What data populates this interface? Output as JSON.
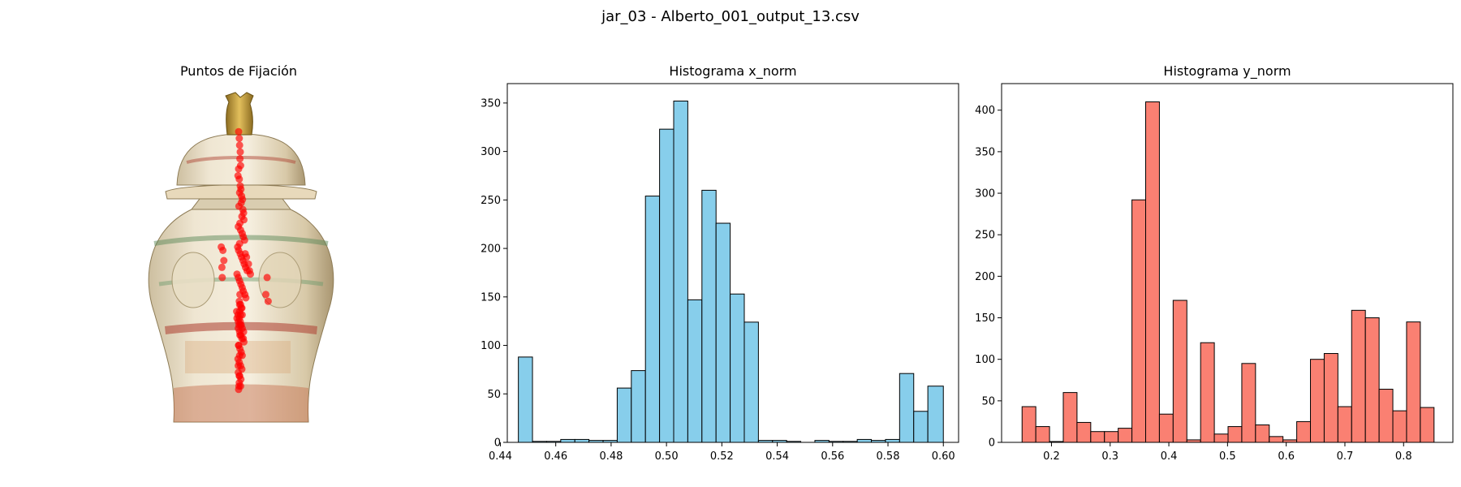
{
  "figure_title": "jar_03 - Alberto_001_output_13.csv",
  "colors": {
    "x_hist_fill": "#87ceeb",
    "y_hist_fill": "#fa8072",
    "bar_edge": "#000000",
    "fixation": "#ff0000"
  },
  "chart_data": [
    {
      "type": "scatter",
      "title": "Puntos de Fijación",
      "note": "Fixation points drawn over a porcelain jar image; no axes shown",
      "x": [
        0.5,
        0.502,
        0.503,
        0.505,
        0.504,
        0.506,
        0.5,
        0.498,
        0.502,
        0.505,
        0.507,
        0.503,
        0.509,
        0.512,
        0.508,
        0.501,
        0.513,
        0.515,
        0.51,
        0.516,
        0.504,
        0.499,
        0.506,
        0.511,
        0.514,
        0.518,
        0.503,
        0.497,
        0.5,
        0.505,
        0.509,
        0.513,
        0.517,
        0.521,
        0.526,
        0.495,
        0.499,
        0.503,
        0.507,
        0.511,
        0.514,
        0.519,
        0.522,
        0.502,
        0.506,
        0.51,
        0.494,
        0.498,
        0.502,
        0.505,
        0.508,
        0.511,
        0.515,
        0.447,
        0.452,
        0.455,
        0.449,
        0.45,
        0.52,
        0.524,
        0.53,
        0.533,
        0.536,
        0.587,
        0.583,
        0.59,
        0.508,
        0.503,
        0.511,
        0.495,
        0.499,
        0.506,
        0.499,
        0.503,
        0.507,
        0.51,
        0.514,
        0.516,
        0.5,
        0.504,
        0.508,
        0.511,
        0.498,
        0.502,
        0.506,
        0.51,
        0.499,
        0.503,
        0.507,
        0.502,
        0.506,
        0.5,
        0.504,
        0.503,
        0.506,
        0.501,
        0.504,
        0.5,
        0.503,
        0.499,
        0.502,
        0.501
      ],
      "y": [
        0.88,
        0.86,
        0.84,
        0.82,
        0.8,
        0.78,
        0.77,
        0.75,
        0.74,
        0.72,
        0.71,
        0.7,
        0.69,
        0.68,
        0.67,
        0.66,
        0.65,
        0.64,
        0.63,
        0.62,
        0.61,
        0.6,
        0.59,
        0.58,
        0.57,
        0.56,
        0.55,
        0.54,
        0.53,
        0.52,
        0.51,
        0.5,
        0.49,
        0.48,
        0.47,
        0.46,
        0.45,
        0.44,
        0.43,
        0.42,
        0.41,
        0.4,
        0.39,
        0.38,
        0.37,
        0.36,
        0.35,
        0.34,
        0.33,
        0.32,
        0.31,
        0.3,
        0.29,
        0.54,
        0.53,
        0.5,
        0.48,
        0.45,
        0.52,
        0.51,
        0.49,
        0.47,
        0.46,
        0.45,
        0.4,
        0.38,
        0.36,
        0.35,
        0.34,
        0.33,
        0.32,
        0.31,
        0.3,
        0.29,
        0.28,
        0.27,
        0.27,
        0.26,
        0.25,
        0.24,
        0.23,
        0.22,
        0.21,
        0.2,
        0.19,
        0.18,
        0.17,
        0.16,
        0.15,
        0.14,
        0.13,
        0.12,
        0.4,
        0.37,
        0.34,
        0.31,
        0.28,
        0.25,
        0.22,
        0.19,
        0.16,
        0.13
      ]
    },
    {
      "type": "bar",
      "title": "Histograma x_norm",
      "xlim": [
        0.4425,
        0.6055
      ],
      "ylim": [
        0,
        370
      ],
      "xticks": [
        0.44,
        0.46,
        0.48,
        0.5,
        0.52,
        0.54,
        0.56,
        0.58,
        0.6
      ],
      "xtick_labels": [
        "0.44",
        "0.46",
        "0.48",
        "0.50",
        "0.52",
        "0.54",
        "0.56",
        "0.58",
        "0.60"
      ],
      "yticks": [
        0,
        50,
        100,
        150,
        200,
        250,
        300,
        350
      ],
      "bin_edges": [
        0.4465,
        0.4516,
        0.4567,
        0.4618,
        0.4669,
        0.472,
        0.4771,
        0.4822,
        0.4873,
        0.4924,
        0.4975,
        0.5026,
        0.5077,
        0.5128,
        0.5179,
        0.523,
        0.5281,
        0.5332,
        0.5383,
        0.5434,
        0.5485,
        0.5536,
        0.5587,
        0.5638,
        0.5689,
        0.574,
        0.5791,
        0.5842,
        0.5893,
        0.5944,
        0.6
      ],
      "values": [
        88,
        1,
        1,
        3,
        3,
        2,
        2,
        56,
        74,
        254,
        323,
        352,
        147,
        260,
        226,
        153,
        124,
        2,
        2,
        1,
        0,
        2,
        1,
        1,
        3,
        2,
        3,
        71,
        32,
        58
      ]
    },
    {
      "type": "bar",
      "title": "Histograma y_norm",
      "xlim": [
        0.115,
        0.884
      ],
      "ylim": [
        0,
        432
      ],
      "xticks": [
        0.2,
        0.3,
        0.4,
        0.5,
        0.6,
        0.7,
        0.8
      ],
      "xtick_labels": [
        "0.2",
        "0.3",
        "0.4",
        "0.5",
        "0.6",
        "0.7",
        "0.8"
      ],
      "yticks": [
        0,
        50,
        100,
        150,
        200,
        250,
        300,
        350,
        400
      ],
      "bin_edges": [
        0.1499,
        0.1733,
        0.1967,
        0.2201,
        0.2435,
        0.2669,
        0.2903,
        0.3137,
        0.3371,
        0.3605,
        0.3839,
        0.4073,
        0.4307,
        0.4541,
        0.4775,
        0.5009,
        0.5243,
        0.5477,
        0.5711,
        0.5945,
        0.6179,
        0.6413,
        0.6647,
        0.6881,
        0.7115,
        0.7349,
        0.7583,
        0.7817,
        0.8051,
        0.8285,
        0.8519
      ],
      "values": [
        43,
        19,
        1,
        60,
        24,
        13,
        13,
        17,
        292,
        410,
        34,
        171,
        3,
        120,
        10,
        19,
        95,
        21,
        7,
        3,
        25,
        100,
        107,
        43,
        159,
        150,
        64,
        38,
        145,
        42
      ]
    }
  ]
}
